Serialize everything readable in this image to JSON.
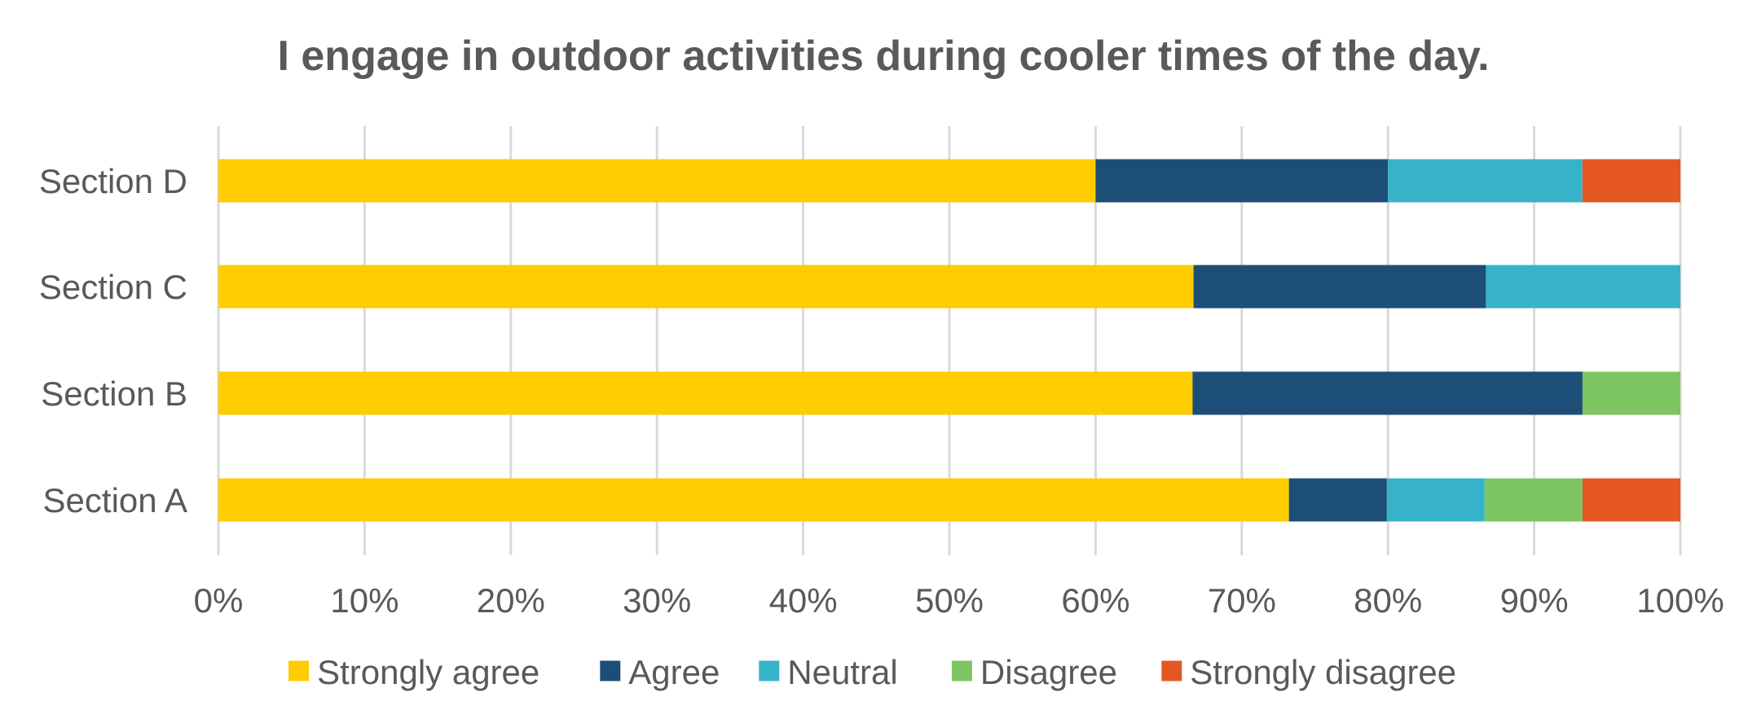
{
  "chart_data": {
    "type": "bar",
    "orientation": "horizontal",
    "stacked": "percent",
    "title": "I engage in outdoor activities during cooler times of the day.",
    "xlabel": "",
    "ylabel": "",
    "categories": [
      "Section D",
      "Section C",
      "Section B",
      "Section A"
    ],
    "series": [
      {
        "name": "Strongly agree",
        "color": "#FFCC00",
        "values": [
          60.0,
          66.7,
          66.7,
          73.3
        ]
      },
      {
        "name": "Agree",
        "color": "#1D4E77",
        "values": [
          20.0,
          20.0,
          26.7,
          6.7
        ]
      },
      {
        "name": "Neutral",
        "color": "#36B3C9",
        "values": [
          13.3,
          13.3,
          0,
          6.7
        ]
      },
      {
        "name": "Disagree",
        "color": "#7DC462",
        "values": [
          0,
          0,
          6.7,
          6.7
        ]
      },
      {
        "name": "Strongly disagree",
        "color": "#E55722",
        "values": [
          6.7,
          0,
          0,
          6.7
        ]
      }
    ],
    "xlim": [
      0,
      100
    ],
    "xticks": [
      "0%",
      "10%",
      "20%",
      "30%",
      "40%",
      "50%",
      "60%",
      "70%",
      "80%",
      "90%",
      "100%"
    ],
    "grid": true,
    "legend_position": "bottom"
  }
}
